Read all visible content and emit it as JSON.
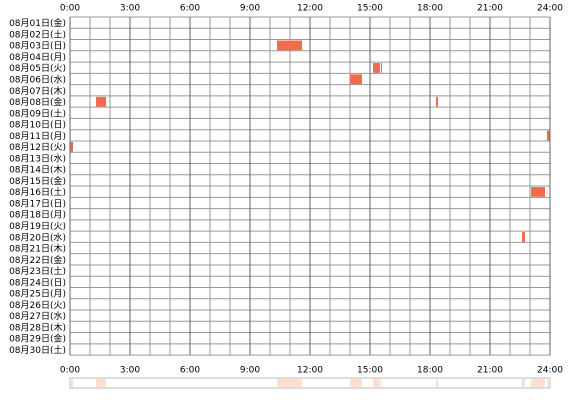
{
  "chart_data": {
    "type": "timeline",
    "categories": [
      "08月01日(金)",
      "08月02日(土)",
      "08月03日(日)",
      "08月04日(月)",
      "08月05日(火)",
      "08月06日(水)",
      "08月07日(木)",
      "08月08日(金)",
      "08月09日(土)",
      "08月10日(日)",
      "08月11日(月)",
      "08月12日(火)",
      "08月13日(水)",
      "08月14日(木)",
      "08月15日(金)",
      "08月16日(土)",
      "08月17日(日)",
      "08月18日(月)",
      "08月19日(火)",
      "08月20日(水)",
      "08月21日(木)",
      "08月22日(金)",
      "08月23日(土)",
      "08月24日(日)",
      "08月25日(月)",
      "08月26日(火)",
      "08月27日(水)",
      "08月28日(木)",
      "08月29日(金)",
      "08月30日(土)"
    ],
    "intervals": [
      [],
      [],
      [
        [
          10.35,
          11.6
        ]
      ],
      [],
      [
        [
          15.15,
          15.5
        ],
        [
          15.55,
          15.6
        ]
      ],
      [
        [
          14.0,
          14.6
        ]
      ],
      [],
      [
        [
          1.3,
          1.8
        ],
        [
          18.3,
          18.4
        ]
      ],
      [],
      [],
      [
        [
          23.85,
          24
        ]
      ],
      [
        [
          0,
          0.15
        ]
      ],
      [],
      [],
      [],
      [
        [
          23.05,
          23.75
        ]
      ],
      [],
      [],
      [],
      [
        [
          22.6,
          22.75
        ]
      ],
      [],
      [],
      [],
      [],
      [],
      [],
      [],
      [],
      [],
      []
    ],
    "color": "#f26b4b",
    "summary_color": "#fde0d0",
    "xlim": [
      0,
      24
    ],
    "xticks": [
      {
        "value": 0,
        "label": "0:00"
      },
      {
        "value": 3,
        "label": "3:00"
      },
      {
        "value": 6,
        "label": "6:00"
      },
      {
        "value": 9,
        "label": "9:00"
      },
      {
        "value": 12,
        "label": "12:00"
      },
      {
        "value": 15,
        "label": "15:00"
      },
      {
        "value": 18,
        "label": "18:00"
      },
      {
        "value": 21,
        "label": "21:00"
      },
      {
        "value": 24,
        "label": "24:00"
      }
    ]
  }
}
